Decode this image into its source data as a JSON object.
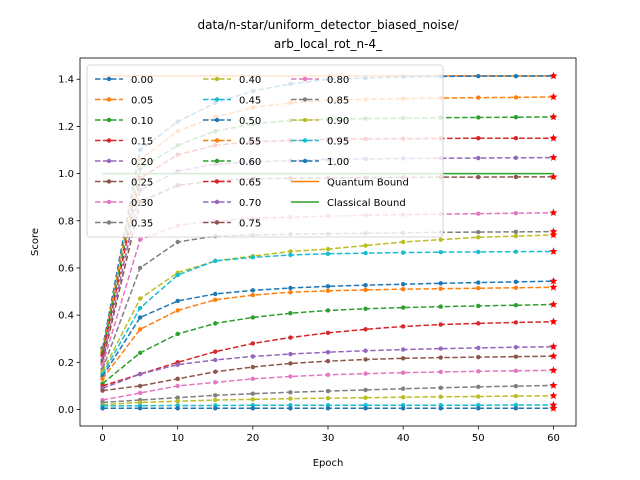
{
  "chart_data": {
    "type": "line",
    "title_lines": [
      "data/n-star/uniform_detector_biased_noise/",
      "arb_local_rot_n-4_"
    ],
    "xlabel": "Epoch",
    "ylabel": "Score",
    "xlim": [
      -3,
      63
    ],
    "ylim": [
      -0.07,
      1.49
    ],
    "xticks": [
      0,
      10,
      20,
      30,
      40,
      50,
      60
    ],
    "xtick_labels": [
      "0",
      "10",
      "20",
      "30",
      "40",
      "50",
      "60"
    ],
    "yticks": [
      0.0,
      0.2,
      0.4,
      0.6,
      0.8,
      1.0,
      1.2,
      1.4
    ],
    "ytick_labels": [
      "0.0",
      "0.2",
      "0.4",
      "0.6",
      "0.8",
      "1.0",
      "1.2",
      "1.4"
    ],
    "grid": false,
    "legend_position": "upper-left",
    "legend_columns": 3,
    "x": [
      0,
      5,
      10,
      15,
      20,
      25,
      30,
      35,
      40,
      45,
      50,
      55,
      60
    ],
    "series": [
      {
        "name": "0.00",
        "color": "#1f77b4",
        "values": [
          0.26,
          1.1,
          1.22,
          1.3,
          1.35,
          1.38,
          1.4,
          1.405,
          1.41,
          1.412,
          1.413,
          1.413,
          1.414
        ]
      },
      {
        "name": "0.05",
        "color": "#ff7f0e",
        "values": [
          0.25,
          1.06,
          1.18,
          1.24,
          1.28,
          1.3,
          1.31,
          1.315,
          1.318,
          1.32,
          1.322,
          1.323,
          1.325
        ]
      },
      {
        "name": "0.10",
        "color": "#2ca02c",
        "values": [
          0.24,
          1.02,
          1.12,
          1.18,
          1.21,
          1.225,
          1.23,
          1.233,
          1.235,
          1.237,
          1.238,
          1.239,
          1.24
        ]
      },
      {
        "name": "0.15",
        "color": "#d62728",
        "values": [
          0.23,
          0.98,
          1.08,
          1.12,
          1.135,
          1.14,
          1.145,
          1.147,
          1.148,
          1.149,
          1.15,
          1.15,
          1.15
        ]
      },
      {
        "name": "0.20",
        "color": "#9467bd",
        "values": [
          0.21,
          0.93,
          1.01,
          1.04,
          1.05,
          1.055,
          1.06,
          1.062,
          1.064,
          1.065,
          1.066,
          1.067,
          1.068
        ]
      },
      {
        "name": "0.25",
        "color": "#8c564b",
        "values": [
          0.2,
          0.88,
          0.95,
          0.97,
          0.978,
          0.98,
          0.982,
          0.983,
          0.984,
          0.985,
          0.985,
          0.986,
          0.986
        ]
      },
      {
        "name": "0.30",
        "color": "#e377c2",
        "values": [
          0.19,
          0.72,
          0.78,
          0.8,
          0.81,
          0.815,
          0.82,
          0.823,
          0.826,
          0.828,
          0.83,
          0.832,
          0.834
        ]
      },
      {
        "name": "0.35",
        "color": "#7f7f7f",
        "values": [
          0.17,
          0.6,
          0.71,
          0.735,
          0.74,
          0.743,
          0.745,
          0.747,
          0.749,
          0.751,
          0.752,
          0.753,
          0.754
        ]
      },
      {
        "name": "0.40",
        "color": "#bcbd22",
        "values": [
          0.16,
          0.47,
          0.58,
          0.63,
          0.65,
          0.67,
          0.68,
          0.695,
          0.71,
          0.72,
          0.73,
          0.735,
          0.74
        ]
      },
      {
        "name": "0.45",
        "color": "#17becf",
        "values": [
          0.15,
          0.43,
          0.57,
          0.63,
          0.645,
          0.655,
          0.66,
          0.663,
          0.665,
          0.667,
          0.668,
          0.669,
          0.67
        ]
      },
      {
        "name": "0.50",
        "color": "#1f77b4",
        "values": [
          0.14,
          0.39,
          0.46,
          0.49,
          0.505,
          0.515,
          0.522,
          0.527,
          0.531,
          0.535,
          0.538,
          0.541,
          0.544
        ]
      },
      {
        "name": "0.55",
        "color": "#ff7f0e",
        "values": [
          0.13,
          0.34,
          0.42,
          0.465,
          0.485,
          0.497,
          0.503,
          0.507,
          0.51,
          0.512,
          0.514,
          0.516,
          0.518
        ]
      },
      {
        "name": "0.60",
        "color": "#2ca02c",
        "values": [
          0.11,
          0.24,
          0.32,
          0.365,
          0.39,
          0.408,
          0.42,
          0.427,
          0.432,
          0.436,
          0.439,
          0.442,
          0.445
        ]
      },
      {
        "name": "0.65",
        "color": "#d62728",
        "values": [
          0.1,
          0.15,
          0.2,
          0.245,
          0.28,
          0.305,
          0.325,
          0.34,
          0.352,
          0.36,
          0.365,
          0.369,
          0.372
        ]
      },
      {
        "name": "0.70",
        "color": "#9467bd",
        "values": [
          0.09,
          0.15,
          0.19,
          0.21,
          0.225,
          0.235,
          0.243,
          0.249,
          0.254,
          0.258,
          0.261,
          0.264,
          0.266
        ]
      },
      {
        "name": "0.75",
        "color": "#8c564b",
        "values": [
          0.08,
          0.1,
          0.13,
          0.16,
          0.18,
          0.195,
          0.205,
          0.212,
          0.217,
          0.22,
          0.222,
          0.224,
          0.226
        ]
      },
      {
        "name": "0.80",
        "color": "#e377c2",
        "values": [
          0.04,
          0.07,
          0.1,
          0.115,
          0.13,
          0.14,
          0.147,
          0.152,
          0.156,
          0.159,
          0.162,
          0.164,
          0.166
        ]
      },
      {
        "name": "0.85",
        "color": "#7f7f7f",
        "values": [
          0.03,
          0.04,
          0.05,
          0.06,
          0.067,
          0.073,
          0.078,
          0.083,
          0.088,
          0.092,
          0.096,
          0.099,
          0.102
        ]
      },
      {
        "name": "0.90",
        "color": "#bcbd22",
        "values": [
          0.02,
          0.03,
          0.035,
          0.04,
          0.043,
          0.046,
          0.048,
          0.05,
          0.052,
          0.054,
          0.055,
          0.057,
          0.058
        ]
      },
      {
        "name": "0.95",
        "color": "#17becf",
        "values": [
          0.015,
          0.016,
          0.017,
          0.017,
          0.018,
          0.018,
          0.018,
          0.018,
          0.018,
          0.018,
          0.018,
          0.019,
          0.019
        ]
      },
      {
        "name": "1.00",
        "color": "#1f77b4",
        "values": [
          0.005,
          0.005,
          0.005,
          0.005,
          0.005,
          0.005,
          0.005,
          0.005,
          0.005,
          0.005,
          0.005,
          0.005,
          0.005
        ]
      }
    ],
    "reference_lines": [
      {
        "name": "Quantum Bound",
        "color": "#ff7f0e",
        "y": 1.414
      },
      {
        "name": "Classical Bound",
        "color": "#2ca02c",
        "y": 1.0
      }
    ],
    "final_marker_color": "#ff0000"
  }
}
